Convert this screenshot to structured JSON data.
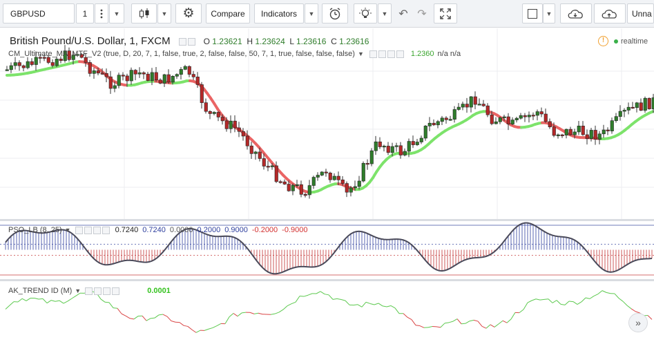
{
  "toolbar": {
    "symbol": "GBPUSD",
    "interval": "1",
    "compare_label": "Compare",
    "indicators_label": "Indicators",
    "layout_name": "Unna"
  },
  "main_pane": {
    "title": "British Pound/U.S. Dollar, 1, FXCM",
    "ohlc": {
      "o_label": "O",
      "o_value": "1.23621",
      "h_label": "H",
      "h_value": "1.23624",
      "l_label": "L",
      "l_value": "1.23616",
      "c_label": "C",
      "c_value": "1.23616"
    },
    "realtime_label": "realtime",
    "indicator": {
      "name": "CM_Ultimate_MA_MTF_V2 (true, D, 20, 7, 1, false, true, 2, false, false, 50, 7, 1, true, false, false, false)",
      "value": "1.2360",
      "extra": "n/a n/a"
    }
  },
  "pso_pane": {
    "name": "PSO_LB (8, 25)",
    "values": [
      "0.7240",
      "0.7240",
      "0.0000",
      "0.2000",
      "0.9000",
      "-0.2000",
      "-0.9000"
    ],
    "value_colors": [
      "#222222",
      "#2e3f9e",
      "#555555",
      "#2e3f9e",
      "#2e3f9e",
      "#d23030",
      "#d23030"
    ]
  },
  "trend_pane": {
    "name": "AK_TREND ID (M)",
    "value": "0.0001"
  },
  "colors": {
    "up_candle": "#2f7d2b",
    "down_candle": "#b52828",
    "ma_up": "#7de36b",
    "ma_down": "#ea6464",
    "pso_line": "#4a4a5a",
    "pso_up": "#2e3f9e",
    "pso_down": "#c23030",
    "trend_up": "#5cc94e",
    "trend_down": "#d94545",
    "realtime_dot": "#3ab04a",
    "warning": "#f0a030"
  }
}
